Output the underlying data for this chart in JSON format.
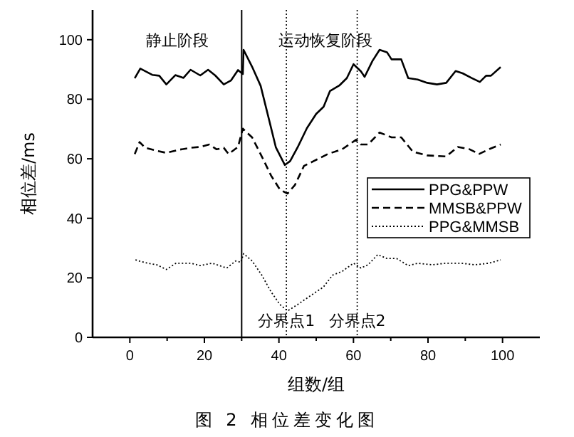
{
  "chart_data": {
    "type": "line",
    "xlabel": "组数/组",
    "ylabel": "相位差/ms",
    "xlim": [
      -10,
      110
    ],
    "ylim": [
      0,
      110
    ],
    "xticks": [
      0,
      {
        "value": 10,
        "label": null
      },
      20,
      {
        "value": 30,
        "label": null
      },
      40,
      {
        "value": 50,
        "label": null
      },
      60,
      {
        "value": 70,
        "label": null
      },
      80,
      {
        "value": 90,
        "label": null
      },
      100
    ],
    "yticks": [
      0,
      20,
      40,
      60,
      80,
      100
    ],
    "grid": false,
    "legend": "right",
    "marker": "none",
    "ref_lines": [
      {
        "axis": "x",
        "value": 30,
        "line_style": "solid",
        "color": "#000000"
      },
      {
        "axis": "x",
        "value": 42,
        "label": "分界点1",
        "line_style": "dotted",
        "color": "#000000"
      },
      {
        "axis": "x",
        "value": 61,
        "label": "分界点2",
        "line_style": "dotted",
        "color": "#000000"
      }
    ],
    "annotations": [
      "静止阶段",
      "运动恢复阶段",
      "图 2  相位差变化图"
    ],
    "series": [
      {
        "name": "PPG&PPW",
        "color": "#000000",
        "line_style": "solid",
        "x": [
          1.3,
          2.8,
          6,
          7.9,
          9.8,
          12.2,
          14.4,
          16.3,
          18.9,
          21,
          22.9,
          25.2,
          27.1,
          29,
          30.3,
          30.5,
          32.8,
          35.1,
          37.3,
          39.2,
          41.6,
          43,
          45,
          47.5,
          50,
          52,
          53.7,
          56.2,
          58.2,
          60,
          62,
          63,
          65.1,
          67,
          69,
          70.2,
          72.8,
          74.7,
          77.2,
          79.8,
          82.4,
          84.9,
          87.4,
          89.3,
          91.8,
          93.9,
          95.6,
          96.9,
          99.5
        ],
        "values": [
          87.1,
          90.3,
          88.2,
          87.9,
          85,
          88.1,
          87.2,
          89.9,
          88,
          89.9,
          88,
          85,
          86.3,
          89.8,
          88.5,
          96.6,
          90.9,
          84.5,
          73.3,
          63.8,
          57.9,
          59.2,
          63.8,
          70.3,
          75.1,
          77.5,
          82.8,
          84.6,
          87.1,
          91.8,
          89.4,
          87.5,
          92.9,
          96.6,
          95.8,
          93.4,
          93.4,
          87.1,
          86.6,
          85.5,
          85,
          85.5,
          89.5,
          88.7,
          87.1,
          85.8,
          87.9,
          87.9,
          90.8
        ]
      },
      {
        "name": "MMSB&PPW",
        "color": "#000000",
        "line_style": "dashed",
        "x": [
          1.3,
          2.6,
          4.1,
          7.2,
          9.8,
          13,
          16.3,
          18.9,
          21.3,
          23.3,
          25.2,
          26.5,
          29,
          30.3,
          32.8,
          35.4,
          37.9,
          40.3,
          42.3,
          44.3,
          46.7,
          49.3,
          53.1,
          56.9,
          60.7,
          62,
          63.9,
          67,
          70.2,
          72.8,
          75.9,
          79.8,
          84.9,
          88,
          91.2,
          93.7,
          96.3,
          99.5
        ],
        "values": [
          61.6,
          65.6,
          63.7,
          62.7,
          62,
          63,
          63.7,
          64,
          64.8,
          63.2,
          63.7,
          61.6,
          64,
          70.1,
          67.2,
          60.8,
          54.4,
          49.6,
          48.3,
          51.2,
          57.6,
          59.2,
          61.6,
          63.2,
          66.4,
          64.8,
          64.8,
          68.8,
          67.2,
          67.2,
          62.4,
          61.1,
          60.8,
          64,
          63.2,
          61.6,
          63.2,
          64.8
        ]
      },
      {
        "name": "PPG&MMSB",
        "color": "#000000",
        "line_style": "dotted",
        "x": [
          1.5,
          4.7,
          7.2,
          9.8,
          12.4,
          16.3,
          18.9,
          22.1,
          26,
          28.4,
          29.8,
          30.5,
          32.8,
          35.4,
          37.9,
          40.3,
          42.3,
          45,
          48.1,
          51.9,
          54.4,
          57,
          60,
          62,
          63.9,
          66.5,
          69,
          71.6,
          74.7,
          77.2,
          81.1,
          84.9,
          88.8,
          92.6,
          96.4,
          99.5
        ],
        "values": [
          26,
          24.9,
          24.4,
          22.8,
          24.9,
          24.9,
          24.1,
          24.9,
          23.3,
          25.7,
          25.2,
          28.1,
          25.7,
          20.9,
          15.3,
          11,
          8.9,
          11,
          13.7,
          16.9,
          20.9,
          22.2,
          24.9,
          23.3,
          24.4,
          27.8,
          26.5,
          26.5,
          24.1,
          24.9,
          24.4,
          24.9,
          24.9,
          24.4,
          24.9,
          26
        ]
      }
    ]
  }
}
